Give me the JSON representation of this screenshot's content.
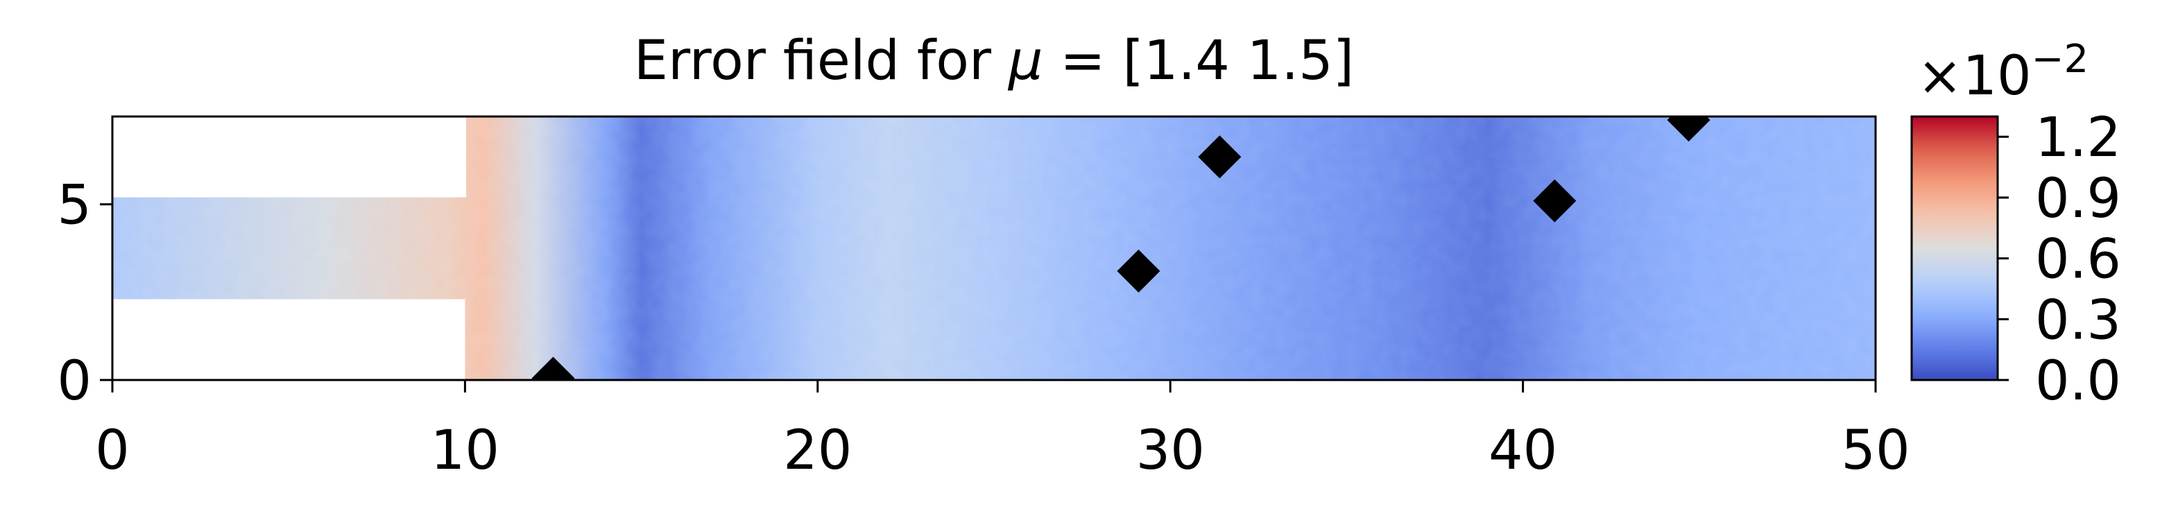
{
  "chart_data": {
    "type": "heatmap",
    "title_prefix": "Error field for ",
    "title_symbol": "μ",
    "title_suffix": " = [1.4 1.5]",
    "xlim": [
      0,
      50
    ],
    "ylim": [
      0,
      7.5
    ],
    "x_ticks": [
      0,
      10,
      20,
      30,
      40,
      50
    ],
    "x_tick_labels": [
      "0",
      "10",
      "20",
      "30",
      "40",
      "50"
    ],
    "y_ticks": [
      0,
      5
    ],
    "y_tick_labels": [
      "0",
      "5"
    ],
    "channel": {
      "x": [
        0,
        10
      ],
      "y": [
        2.3,
        5.2
      ]
    },
    "colormap": "coolwarm",
    "colorbar": {
      "min": 0.0,
      "max": 1.3,
      "ticks": [
        0.0,
        0.3,
        0.6,
        0.9,
        1.2
      ],
      "tick_labels": [
        "0.0",
        "0.3",
        "0.6",
        "0.9",
        "1.2"
      ],
      "scale_base": "×10",
      "scale_exponent": "−2"
    },
    "error_profile": {
      "x": [
        0,
        6,
        9.5,
        10.5,
        12,
        14,
        15,
        17,
        20,
        22,
        25,
        28,
        32,
        36,
        39,
        42,
        45,
        50
      ],
      "value": [
        0.45,
        0.62,
        0.75,
        0.82,
        0.6,
        0.28,
        0.12,
        0.28,
        0.45,
        0.52,
        0.45,
        0.38,
        0.28,
        0.2,
        0.12,
        0.26,
        0.32,
        0.36
      ]
    },
    "sensor_points": [
      {
        "x": 12.5,
        "y": 0.05
      },
      {
        "x": 29.1,
        "y": 3.1
      },
      {
        "x": 31.4,
        "y": 6.35
      },
      {
        "x": 40.9,
        "y": 5.1
      },
      {
        "x": 44.7,
        "y": 7.4
      }
    ]
  }
}
